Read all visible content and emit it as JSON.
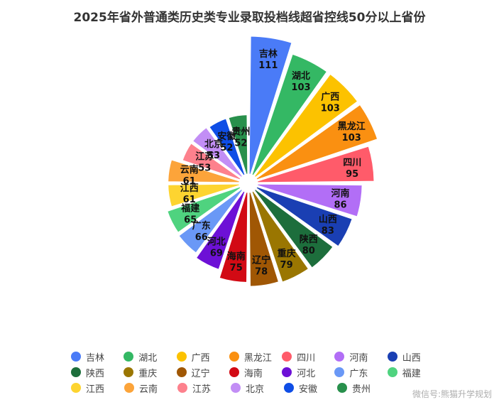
{
  "chart_data": {
    "type": "pie",
    "subtype": "nightingale-rose",
    "title": "2025年省外普通类历史类专业录取投档线超省控线50分以上省份",
    "categories": [
      "吉林",
      "湖北",
      "广西",
      "黑龙江",
      "四川",
      "河南",
      "山西",
      "陕西",
      "重庆",
      "辽宁",
      "海南",
      "河北",
      "广东",
      "福建",
      "江西",
      "云南",
      "江苏",
      "北京",
      "安徽",
      "贵州"
    ],
    "values": [
      111,
      103,
      103,
      103,
      95,
      86,
      83,
      80,
      79,
      78,
      75,
      69,
      66,
      65,
      61,
      61,
      53,
      53,
      52,
      52
    ],
    "colors": [
      "#4a7bf7",
      "#34b864",
      "#fcc200",
      "#fa9011",
      "#ff5b6a",
      "#b26ef6",
      "#1a3fb3",
      "#1d6e3c",
      "#9a7601",
      "#a05704",
      "#d20a14",
      "#6d10d6",
      "#6a98f6",
      "#4fd37f",
      "#fdd430",
      "#fca43a",
      "#fd818d",
      "#c28ef5",
      "#0f4ee6",
      "#28904c"
    ],
    "legend_position": "bottom"
  },
  "watermark": "微信号:熊猫升学规划"
}
